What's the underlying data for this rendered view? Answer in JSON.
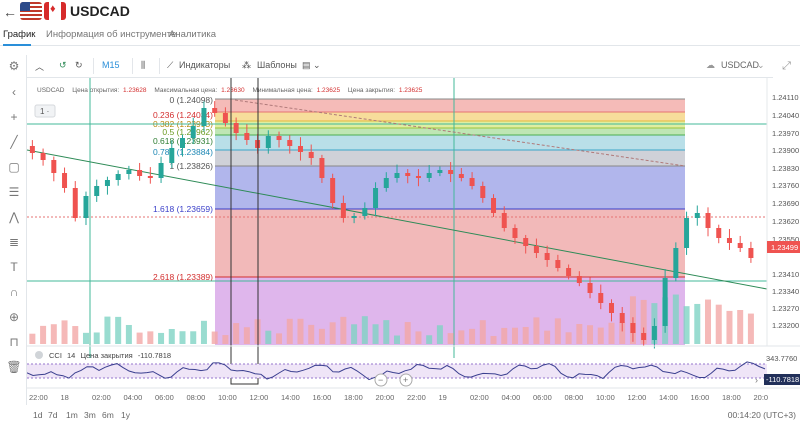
{
  "header": {
    "symbol": "USDCAD"
  },
  "tabs": [
    {
      "label": "График",
      "active": true
    },
    {
      "label": "Информация об инструменте",
      "active": false
    },
    {
      "label": "Аналитика",
      "active": false
    }
  ],
  "toolbar": {
    "timeframe": "M15",
    "indicators": "Индикаторы",
    "templates": "Шаблоны",
    "symbol_select": "USDCAD"
  },
  "chart": {
    "ohlc_line": {
      "symbol": "USDCAD",
      "open_label": "Цена открытия:",
      "open_value": "1.23628",
      "high_label": "Максимальная цена:",
      "high_value": "1.23630",
      "low_label": "Минимальная цена:",
      "low_value": "1.23625",
      "close_label": "Цена закрытия:",
      "close_value": "1.23625"
    },
    "pane_badge": "1 ·",
    "price_axis": [
      "1.24110",
      "1.24040",
      "1.23970",
      "1.23900",
      "1.23830",
      "1.23760",
      "1.23690",
      "1.23620",
      "1.23550",
      "1.23410",
      "1.23340",
      "1.23270",
      "1.23200"
    ],
    "current_price": "1.23499",
    "time_axis": [
      "22:00",
      "18",
      "02:00",
      "04:00",
      "06:00",
      "08:00",
      "10:00",
      "12:00",
      "14:00",
      "16:00",
      "18:00",
      "20:00",
      "22:00",
      "19",
      "02:00",
      "04:00",
      "06:00",
      "08:00",
      "10:00",
      "12:00",
      "14:00",
      "16:00",
      "18:00",
      "20:0"
    ],
    "fib_levels": [
      "0 (1.24098)",
      "0.236 (1.24034)",
      "0.382 (1.23993)",
      "0.5 (1.23962)",
      "0.618 (1.23931)",
      "0.786 (1.23884)",
      "1 (1.23826)",
      "1.618 (1.23659)",
      "2.618 (1.23389)"
    ],
    "accent": "#2a8fd9",
    "up_color": "#26a69a",
    "down_color": "#ef5350"
  },
  "cci": {
    "label": "CCI",
    "period": "14",
    "source": "Цена закрытия",
    "value": "-110.7818",
    "axis_top": "343.7760",
    "axis_mid": "-110.7818"
  },
  "bottom": {
    "timeframes": [
      "1d",
      "7d",
      "1m",
      "3m",
      "6m",
      "1y"
    ],
    "clock": "00:14:20 (UTC+3)"
  }
}
